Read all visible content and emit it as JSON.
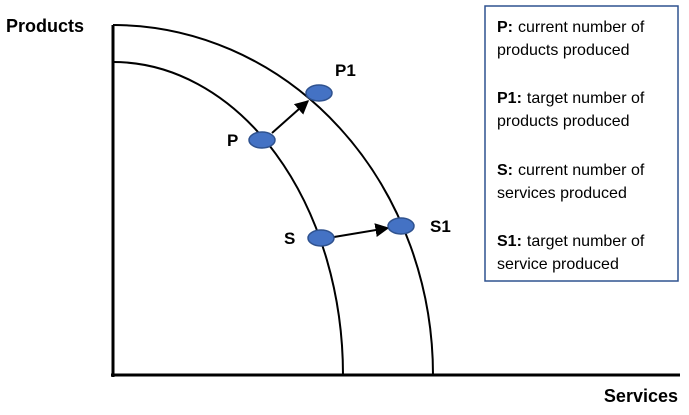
{
  "axes": {
    "y_label": "Products",
    "x_label": "Services"
  },
  "points": [
    {
      "label": "P"
    },
    {
      "label": "P1"
    },
    {
      "label": "S"
    },
    {
      "label": "S1"
    }
  ],
  "legend": [
    {
      "term": "P:",
      "lines": [
        "current number of",
        "products produced"
      ]
    },
    {
      "term": "P1:",
      "lines": [
        "target number of",
        "products produced"
      ]
    },
    {
      "term": "S:",
      "lines": [
        "current number of",
        "services produced"
      ]
    },
    {
      "term": "S1:",
      "lines": [
        "target number of",
        "service produced"
      ]
    }
  ]
}
